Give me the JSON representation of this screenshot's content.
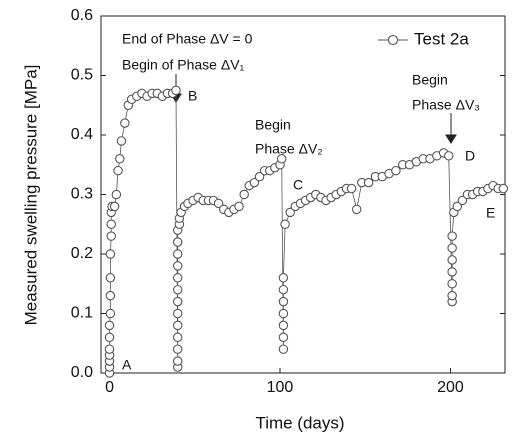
{
  "chart_data": {
    "type": "line",
    "x_label": "Time (days)",
    "y_label": "Measured swelling pressure [MPa]",
    "xlim": [
      -5,
      232
    ],
    "xticks": [
      0,
      100,
      200
    ],
    "ylim": [
      0,
      0.6
    ],
    "yticks": [
      {
        "value": 0,
        "label": "0.0"
      },
      0.1,
      0.2,
      0.3,
      0.4,
      0.5,
      0.6
    ],
    "grid": false,
    "legend": "upper right",
    "series": [
      {
        "name": "Test 2a",
        "color": "#555555",
        "x": [
          0,
          0,
          0,
          0,
          0,
          0,
          0,
          0.5,
          0.5,
          0.5,
          0.5,
          1,
          1,
          1,
          1.5,
          3,
          4,
          5,
          6,
          7,
          9,
          11,
          13,
          16,
          19,
          22,
          25,
          28,
          31,
          34,
          37,
          39,
          40,
          40,
          40,
          40,
          40,
          40,
          40,
          40,
          40,
          40,
          40,
          40,
          40,
          41,
          41,
          42,
          44,
          46,
          49,
          52,
          55,
          58,
          61,
          64,
          67,
          70,
          73,
          76,
          79,
          82,
          85,
          88,
          91,
          94,
          97,
          100,
          101,
          102,
          102,
          102,
          102,
          102,
          102,
          102,
          103,
          106,
          109,
          112,
          115,
          118,
          121,
          124,
          127,
          130,
          133,
          136,
          139,
          142,
          145,
          148,
          152,
          156,
          160,
          164,
          168,
          172,
          176,
          180,
          184,
          188,
          192,
          196,
          199,
          201,
          201,
          201,
          201,
          201,
          201,
          201,
          202,
          204,
          207,
          210,
          213,
          216,
          219,
          222,
          225,
          228,
          231
        ],
        "values": [
          0,
          0.01,
          0.02,
          0.03,
          0.04,
          0.06,
          0.08,
          0.1,
          0.13,
          0.16,
          0.2,
          0.23,
          0.25,
          0.27,
          0.28,
          0.28,
          0.3,
          0.34,
          0.36,
          0.39,
          0.42,
          0.45,
          0.46,
          0.465,
          0.47,
          0.465,
          0.47,
          0.47,
          0.465,
          0.47,
          0.47,
          0.475,
          0.01,
          0.02,
          0.04,
          0.06,
          0.08,
          0.1,
          0.12,
          0.14,
          0.16,
          0.18,
          0.2,
          0.22,
          0.24,
          0.25,
          0.26,
          0.27,
          0.28,
          0.285,
          0.29,
          0.295,
          0.29,
          0.29,
          0.29,
          0.285,
          0.275,
          0.27,
          0.275,
          0.28,
          0.3,
          0.315,
          0.32,
          0.33,
          0.34,
          0.34,
          0.345,
          0.35,
          0.36,
          0.04,
          0.06,
          0.08,
          0.1,
          0.12,
          0.14,
          0.16,
          0.25,
          0.27,
          0.28,
          0.285,
          0.29,
          0.295,
          0.3,
          0.295,
          0.29,
          0.295,
          0.3,
          0.305,
          0.31,
          0.31,
          0.275,
          0.32,
          0.32,
          0.33,
          0.33,
          0.335,
          0.34,
          0.35,
          0.35,
          0.355,
          0.36,
          0.36,
          0.365,
          0.37,
          0.365,
          0.12,
          0.13,
          0.15,
          0.17,
          0.19,
          0.21,
          0.23,
          0.27,
          0.28,
          0.29,
          0.3,
          0.3,
          0.305,
          0.305,
          0.31,
          0.315,
          0.31,
          0.31
        ]
      }
    ],
    "annotations": [
      {
        "text": "End of Phase ΔV = 0"
      },
      {
        "text": "Begin of  Phase ΔV₁"
      },
      {
        "text": "B"
      },
      {
        "text": "Begin"
      },
      {
        "text": "Phase ΔV₂"
      },
      {
        "text": "C"
      },
      {
        "text": "Begin"
      },
      {
        "text": "Phase ΔV₃"
      },
      {
        "text": "D"
      },
      {
        "text": "E"
      },
      {
        "text": "A"
      }
    ]
  }
}
